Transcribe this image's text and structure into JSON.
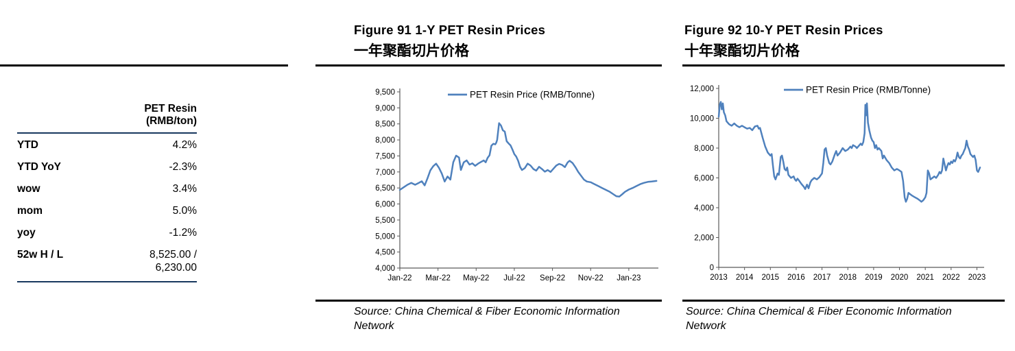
{
  "side_table": {
    "header_line1": "PET  Resin",
    "header_line2": "(RMB/ton)",
    "rule_color": "#17375E",
    "rows": [
      {
        "label": "YTD",
        "value": "4.2%"
      },
      {
        "label": "YTD YoY",
        "value": "-2.3%"
      },
      {
        "label": "wow",
        "value": "3.4%"
      },
      {
        "label": "mom",
        "value": "5.0%"
      },
      {
        "label": "yoy",
        "value": "-1.2%"
      },
      {
        "label": "52w H / L",
        "value": "8,525.00 / 6,230.00"
      }
    ]
  },
  "chart_data": [
    {
      "id": "fig91",
      "type": "line",
      "title": "Figure 91 1-Y PET Resin Prices",
      "subtitle": "一年聚酯切片价格",
      "legend": "PET Resin Price (RMB/Tonne)",
      "line_color": "#4F81BD",
      "source_lines": [
        "Source: China Chemical & Fiber Economic Information",
        "Network"
      ],
      "x_domain": [
        0,
        13.55
      ],
      "y_domain": [
        4000,
        9500
      ],
      "x_ticks": [
        {
          "v": 0,
          "label": "Jan-22"
        },
        {
          "v": 2,
          "label": "Mar-22"
        },
        {
          "v": 4,
          "label": "May-22"
        },
        {
          "v": 6,
          "label": "Jul-22"
        },
        {
          "v": 8,
          "label": "Sep-22"
        },
        {
          "v": 10,
          "label": "Nov-22"
        },
        {
          "v": 12,
          "label": "Jan-23"
        }
      ],
      "y_ticks": [
        {
          "v": 4000,
          "label": "4,000"
        },
        {
          "v": 4500,
          "label": "4,500"
        },
        {
          "v": 5000,
          "label": "5,000"
        },
        {
          "v": 5500,
          "label": "5,500"
        },
        {
          "v": 6000,
          "label": "6,000"
        },
        {
          "v": 6500,
          "label": "6,500"
        },
        {
          "v": 7000,
          "label": "7,000"
        },
        {
          "v": 7500,
          "label": "7,500"
        },
        {
          "v": 8000,
          "label": "8,000"
        },
        {
          "v": 8500,
          "label": "8,500"
        },
        {
          "v": 9000,
          "label": "9,000"
        },
        {
          "v": 9500,
          "label": "9,500"
        }
      ],
      "points": [
        [
          0,
          6440
        ],
        [
          0.2,
          6520
        ],
        [
          0.4,
          6600
        ],
        [
          0.6,
          6660
        ],
        [
          0.8,
          6600
        ],
        [
          1.0,
          6660
        ],
        [
          1.15,
          6710
        ],
        [
          1.3,
          6580
        ],
        [
          1.45,
          6800
        ],
        [
          1.6,
          7050
        ],
        [
          1.75,
          7180
        ],
        [
          1.9,
          7260
        ],
        [
          2.05,
          7130
        ],
        [
          2.2,
          6950
        ],
        [
          2.35,
          6700
        ],
        [
          2.5,
          6860
        ],
        [
          2.65,
          6760
        ],
        [
          2.8,
          7300
        ],
        [
          2.95,
          7510
        ],
        [
          3.1,
          7450
        ],
        [
          3.2,
          7060
        ],
        [
          3.35,
          7300
        ],
        [
          3.5,
          7360
        ],
        [
          3.65,
          7230
        ],
        [
          3.8,
          7270
        ],
        [
          3.95,
          7190
        ],
        [
          4.1,
          7260
        ],
        [
          4.25,
          7310
        ],
        [
          4.4,
          7360
        ],
        [
          4.5,
          7300
        ],
        [
          4.6,
          7440
        ],
        [
          4.7,
          7520
        ],
        [
          4.8,
          7820
        ],
        [
          4.9,
          7880
        ],
        [
          5.0,
          7860
        ],
        [
          5.05,
          7910
        ],
        [
          5.1,
          8000
        ],
        [
          5.2,
          8525
        ],
        [
          5.3,
          8450
        ],
        [
          5.4,
          8300
        ],
        [
          5.5,
          8260
        ],
        [
          5.6,
          7960
        ],
        [
          5.7,
          7890
        ],
        [
          5.8,
          7830
        ],
        [
          5.9,
          7700
        ],
        [
          6.0,
          7560
        ],
        [
          6.1,
          7480
        ],
        [
          6.2,
          7350
        ],
        [
          6.3,
          7160
        ],
        [
          6.4,
          7060
        ],
        [
          6.55,
          7120
        ],
        [
          6.7,
          7260
        ],
        [
          6.85,
          7200
        ],
        [
          7.0,
          7090
        ],
        [
          7.15,
          7040
        ],
        [
          7.3,
          7160
        ],
        [
          7.45,
          7090
        ],
        [
          7.6,
          7010
        ],
        [
          7.75,
          7060
        ],
        [
          7.9,
          7000
        ],
        [
          8.05,
          7100
        ],
        [
          8.2,
          7200
        ],
        [
          8.35,
          7250
        ],
        [
          8.5,
          7220
        ],
        [
          8.65,
          7150
        ],
        [
          8.8,
          7300
        ],
        [
          8.9,
          7350
        ],
        [
          9.05,
          7280
        ],
        [
          9.2,
          7150
        ],
        [
          9.35,
          7000
        ],
        [
          9.5,
          6880
        ],
        [
          9.65,
          6760
        ],
        [
          9.8,
          6700
        ],
        [
          10.0,
          6680
        ],
        [
          10.2,
          6620
        ],
        [
          10.4,
          6560
        ],
        [
          10.6,
          6500
        ],
        [
          10.8,
          6440
        ],
        [
          11.0,
          6380
        ],
        [
          11.2,
          6300
        ],
        [
          11.35,
          6240
        ],
        [
          11.5,
          6230
        ],
        [
          11.65,
          6300
        ],
        [
          11.8,
          6380
        ],
        [
          12.0,
          6450
        ],
        [
          12.2,
          6500
        ],
        [
          12.4,
          6560
        ],
        [
          12.6,
          6620
        ],
        [
          12.8,
          6660
        ],
        [
          13.0,
          6690
        ],
        [
          13.2,
          6700
        ],
        [
          13.45,
          6720
        ]
      ]
    },
    {
      "id": "fig92",
      "type": "line",
      "title": "Figure 92 10-Y PET Resin Prices",
      "subtitle": "十年聚酯切片价格",
      "legend": "PET Resin Price (RMB/Tonne)",
      "line_color": "#4F81BD",
      "source_lines": [
        "Source: China Chemical & Fiber Economic Information",
        "Network"
      ],
      "x_domain": [
        2013,
        2023.28
      ],
      "y_domain": [
        0,
        12000
      ],
      "x_ticks": [
        {
          "v": 2013,
          "label": "2013"
        },
        {
          "v": 2014,
          "label": "2014"
        },
        {
          "v": 2015,
          "label": "2015"
        },
        {
          "v": 2016,
          "label": "2016"
        },
        {
          "v": 2017,
          "label": "2017"
        },
        {
          "v": 2018,
          "label": "2018"
        },
        {
          "v": 2019,
          "label": "2019"
        },
        {
          "v": 2020,
          "label": "2020"
        },
        {
          "v": 2021,
          "label": "2021"
        },
        {
          "v": 2022,
          "label": "2022"
        },
        {
          "v": 2023,
          "label": "2023"
        }
      ],
      "y_ticks": [
        {
          "v": 0,
          "label": "0"
        },
        {
          "v": 2000,
          "label": "2,000"
        },
        {
          "v": 4000,
          "label": "4,000"
        },
        {
          "v": 6000,
          "label": "6,000"
        },
        {
          "v": 8000,
          "label": "8,000"
        },
        {
          "v": 10000,
          "label": "10,000"
        },
        {
          "v": 12000,
          "label": "12,000"
        }
      ],
      "points": [
        [
          2013.0,
          10100
        ],
        [
          2013.04,
          10900
        ],
        [
          2013.08,
          11100
        ],
        [
          2013.12,
          10600
        ],
        [
          2013.16,
          11000
        ],
        [
          2013.2,
          10400
        ],
        [
          2013.25,
          10200
        ],
        [
          2013.3,
          9800
        ],
        [
          2013.4,
          9600
        ],
        [
          2013.5,
          9500
        ],
        [
          2013.6,
          9650
        ],
        [
          2013.7,
          9500
        ],
        [
          2013.8,
          9400
        ],
        [
          2013.9,
          9500
        ],
        [
          2014.0,
          9400
        ],
        [
          2014.1,
          9300
        ],
        [
          2014.2,
          9350
        ],
        [
          2014.3,
          9200
        ],
        [
          2014.4,
          9450
        ],
        [
          2014.5,
          9500
        ],
        [
          2014.55,
          9300
        ],
        [
          2014.6,
          9350
        ],
        [
          2014.7,
          8700
        ],
        [
          2014.8,
          8100
        ],
        [
          2014.9,
          7700
        ],
        [
          2015.0,
          7500
        ],
        [
          2015.05,
          7600
        ],
        [
          2015.1,
          6800
        ],
        [
          2015.15,
          6100
        ],
        [
          2015.2,
          5900
        ],
        [
          2015.28,
          6300
        ],
        [
          2015.33,
          6200
        ],
        [
          2015.4,
          7400
        ],
        [
          2015.45,
          7500
        ],
        [
          2015.5,
          7100
        ],
        [
          2015.55,
          6600
        ],
        [
          2015.6,
          6500
        ],
        [
          2015.65,
          6700
        ],
        [
          2015.7,
          6200
        ],
        [
          2015.8,
          6000
        ],
        [
          2015.9,
          6100
        ],
        [
          2015.95,
          5900
        ],
        [
          2016.0,
          5800
        ],
        [
          2016.05,
          5950
        ],
        [
          2016.1,
          5850
        ],
        [
          2016.2,
          5600
        ],
        [
          2016.3,
          5400
        ],
        [
          2016.35,
          5250
        ],
        [
          2016.42,
          5550
        ],
        [
          2016.48,
          5300
        ],
        [
          2016.55,
          5700
        ],
        [
          2016.6,
          5850
        ],
        [
          2016.7,
          6000
        ],
        [
          2016.8,
          5900
        ],
        [
          2016.9,
          6050
        ],
        [
          2017.0,
          6300
        ],
        [
          2017.05,
          7000
        ],
        [
          2017.1,
          7900
        ],
        [
          2017.15,
          8000
        ],
        [
          2017.2,
          7500
        ],
        [
          2017.28,
          7000
        ],
        [
          2017.33,
          6900
        ],
        [
          2017.4,
          7100
        ],
        [
          2017.5,
          7600
        ],
        [
          2017.55,
          7800
        ],
        [
          2017.6,
          7500
        ],
        [
          2017.7,
          7700
        ],
        [
          2017.8,
          8000
        ],
        [
          2017.9,
          7800
        ],
        [
          2018.0,
          7900
        ],
        [
          2018.1,
          8100
        ],
        [
          2018.15,
          8000
        ],
        [
          2018.2,
          8200
        ],
        [
          2018.3,
          8100
        ],
        [
          2018.35,
          8000
        ],
        [
          2018.4,
          8100
        ],
        [
          2018.5,
          8300
        ],
        [
          2018.55,
          8200
        ],
        [
          2018.6,
          8400
        ],
        [
          2018.65,
          9000
        ],
        [
          2018.68,
          10900
        ],
        [
          2018.71,
          10200
        ],
        [
          2018.74,
          11000
        ],
        [
          2018.78,
          9700
        ],
        [
          2018.83,
          9200
        ],
        [
          2018.9,
          8700
        ],
        [
          2018.95,
          8500
        ],
        [
          2019.0,
          8400
        ],
        [
          2019.05,
          8000
        ],
        [
          2019.1,
          8200
        ],
        [
          2019.15,
          7900
        ],
        [
          2019.2,
          8000
        ],
        [
          2019.3,
          7800
        ],
        [
          2019.35,
          7300
        ],
        [
          2019.4,
          7500
        ],
        [
          2019.5,
          7200
        ],
        [
          2019.6,
          7000
        ],
        [
          2019.7,
          6700
        ],
        [
          2019.8,
          6500
        ],
        [
          2019.9,
          6600
        ],
        [
          2020.0,
          6500
        ],
        [
          2020.08,
          6400
        ],
        [
          2020.14,
          5800
        ],
        [
          2020.2,
          4700
        ],
        [
          2020.25,
          4400
        ],
        [
          2020.3,
          4600
        ],
        [
          2020.35,
          5000
        ],
        [
          2020.42,
          4900
        ],
        [
          2020.5,
          4800
        ],
        [
          2020.6,
          4700
        ],
        [
          2020.7,
          4600
        ],
        [
          2020.78,
          4500
        ],
        [
          2020.85,
          4400
        ],
        [
          2020.92,
          4500
        ],
        [
          2021.0,
          4700
        ],
        [
          2021.05,
          5000
        ],
        [
          2021.1,
          6500
        ],
        [
          2021.15,
          6300
        ],
        [
          2021.2,
          5900
        ],
        [
          2021.28,
          6000
        ],
        [
          2021.35,
          6100
        ],
        [
          2021.42,
          6000
        ],
        [
          2021.5,
          6200
        ],
        [
          2021.55,
          6400
        ],
        [
          2021.6,
          6300
        ],
        [
          2021.65,
          6500
        ],
        [
          2021.7,
          7300
        ],
        [
          2021.75,
          6900
        ],
        [
          2021.8,
          6500
        ],
        [
          2021.85,
          6800
        ],
        [
          2021.9,
          7000
        ],
        [
          2021.95,
          6900
        ],
        [
          2022.0,
          7100
        ],
        [
          2022.05,
          7000
        ],
        [
          2022.1,
          7200
        ],
        [
          2022.15,
          7100
        ],
        [
          2022.2,
          7300
        ],
        [
          2022.25,
          7700
        ],
        [
          2022.3,
          7400
        ],
        [
          2022.35,
          7300
        ],
        [
          2022.4,
          7500
        ],
        [
          2022.45,
          7600
        ],
        [
          2022.5,
          7800
        ],
        [
          2022.55,
          8000
        ],
        [
          2022.6,
          8500
        ],
        [
          2022.65,
          8100
        ],
        [
          2022.7,
          7900
        ],
        [
          2022.75,
          7600
        ],
        [
          2022.8,
          7500
        ],
        [
          2022.85,
          7400
        ],
        [
          2022.9,
          7500
        ],
        [
          2022.95,
          7200
        ],
        [
          2023.0,
          6500
        ],
        [
          2023.05,
          6400
        ],
        [
          2023.12,
          6700
        ]
      ]
    }
  ],
  "colors": {
    "line_blue": "#4F81BD",
    "table_rule_navy": "#17375E",
    "axis_gray": "#595959"
  }
}
